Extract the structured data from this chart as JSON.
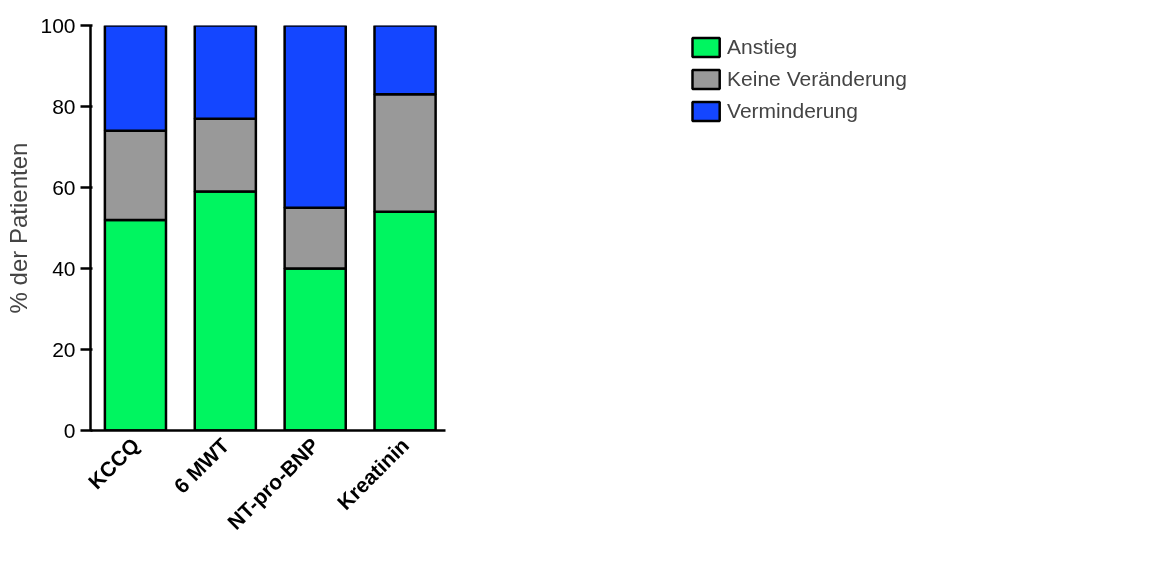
{
  "chart_data": {
    "type": "bar",
    "stacked": true,
    "ylabel": "% der Patienten",
    "categories": [
      "KCCQ",
      "6 MWT",
      "NT-pro-BNP",
      "Kreatinin"
    ],
    "series": [
      {
        "name": "Anstieg",
        "color": "#00f560",
        "values": [
          52,
          59,
          40,
          54
        ]
      },
      {
        "name": "Keine Veränderung",
        "color": "#999999",
        "values": [
          22,
          18,
          15,
          29
        ]
      },
      {
        "name": "Verminderung",
        "color": "#1446ff",
        "values": [
          26,
          23,
          45,
          17
        ]
      }
    ],
    "ylim": [
      0,
      100
    ],
    "yticks": [
      0,
      20,
      40,
      60,
      80,
      100
    ],
    "grid": false,
    "legend": "top right"
  }
}
